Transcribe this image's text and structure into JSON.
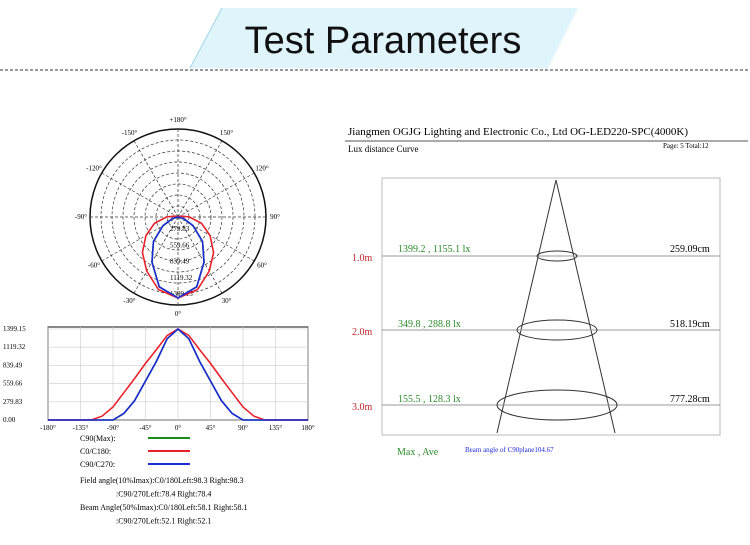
{
  "header": {
    "title": "Test Parameters"
  },
  "chart_data": [
    {
      "type": "polar",
      "angle_ticks": [
        {
          "value": 180,
          "label": "+180°"
        },
        {
          "value": -150,
          "label": "-150°"
        },
        {
          "value": 150,
          "label": "150°"
        },
        {
          "value": -120,
          "label": "-120°"
        },
        {
          "value": 120,
          "label": "120°"
        },
        {
          "value": -90,
          "label": "-90°"
        },
        {
          "value": 90,
          "label": "90°"
        },
        {
          "value": -60,
          "label": "-60°"
        },
        {
          "value": 60,
          "label": "60°"
        },
        {
          "value": -30,
          "label": "-30°"
        },
        {
          "value": 30,
          "label": "30°"
        },
        {
          "value": 0,
          "label": "0°"
        }
      ]
    },
    {
      "type": "line",
      "x": [
        -180,
        -165,
        -150,
        -135,
        -120,
        -105,
        -90,
        -75,
        -60,
        -45,
        -30,
        -15,
        0,
        15,
        30,
        45,
        60,
        75,
        90,
        105,
        120,
        135,
        150,
        165,
        180
      ],
      "series": [
        {
          "name": "C90(Max):",
          "color": "#1a8a1a",
          "values": [
            0,
            0,
            0,
            0,
            0,
            0,
            0,
            100,
            300,
            600,
            900,
            1250,
            1399.15,
            1250,
            900,
            600,
            300,
            100,
            0,
            0,
            0,
            0,
            0,
            0,
            0
          ]
        },
        {
          "name": "C0/C180:",
          "color": "#e8212a",
          "values": [
            0,
            0,
            0,
            0,
            0,
            60,
            200,
            420,
            640,
            870,
            1080,
            1300,
            1399.15,
            1300,
            1080,
            870,
            640,
            420,
            200,
            60,
            0,
            0,
            0,
            0,
            0
          ]
        },
        {
          "name": "C90/C270:",
          "color": "#1c2bd6",
          "values": [
            0,
            0,
            0,
            0,
            0,
            0,
            0,
            100,
            300,
            600,
            900,
            1250,
            1399.15,
            1250,
            900,
            600,
            300,
            100,
            0,
            0,
            0,
            0,
            0,
            0,
            0
          ]
        }
      ],
      "xlim": [
        -180,
        180
      ],
      "xticks": [
        {
          "value": -180,
          "label": "-180°"
        },
        {
          "value": -135,
          "label": "-135°"
        },
        {
          "value": -90,
          "label": "-90°"
        },
        {
          "value": -45,
          "label": "-45°"
        },
        {
          "value": 0,
          "label": "0°"
        },
        {
          "value": 45,
          "label": "45°"
        },
        {
          "value": 90,
          "label": "90°"
        },
        {
          "value": 135,
          "label": "135°"
        },
        {
          "value": 180,
          "label": "180°"
        }
      ],
      "ylim": [
        0,
        1399.15
      ],
      "yticks": [
        {
          "value": 0,
          "label": "0.00"
        },
        279.83,
        559.66,
        839.49,
        1119.32,
        1399.15
      ],
      "grid": true,
      "annotations": [
        "Field angle(10%Imax):C0/180Left:98.3 Right:98.3",
        ":C90/270Left:78.4 Right:78.4",
        "Beam Angle(50%Imax):C0/180Left:58.1 Right:58.1",
        ":C90/270Left:52.1 Right:52.1"
      ]
    }
  ],
  "lux_report": {
    "company": "Jiangmen OGJG Lighting and Electronic Co., Ltd OG-LED220-SPC(4000K)",
    "subtitle": "Lux distance Curve",
    "page": "Page: 5 Total:12",
    "rows": [
      {
        "distance": "1.0m",
        "lux": "1399.2 , 1155.1 lx",
        "diameter": "259.09cm"
      },
      {
        "distance": "2.0m",
        "lux": "349.8 , 288.8 lx",
        "diameter": "518.19cm"
      },
      {
        "distance": "3.0m",
        "lux": "155.5 , 128.3 lx",
        "diameter": "777.28cm"
      }
    ],
    "footer_label": "Max , Ave",
    "beam_angle": "Beam angle of C90plane104.67"
  }
}
